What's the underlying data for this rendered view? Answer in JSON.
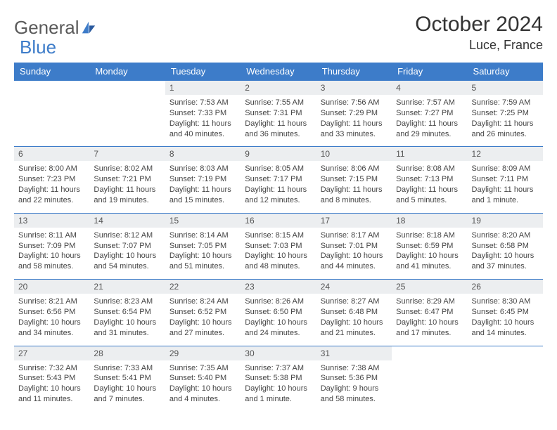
{
  "logo": {
    "part1": "General",
    "part2": "Blue"
  },
  "title": "October 2024",
  "location": "Luce, France",
  "colors": {
    "header_bg": "#3d7cc9",
    "header_text": "#ffffff",
    "daynum_bg": "#eceef0",
    "border": "#3d7cc9",
    "text": "#333333"
  },
  "days": [
    "Sunday",
    "Monday",
    "Tuesday",
    "Wednesday",
    "Thursday",
    "Friday",
    "Saturday"
  ],
  "weeks": [
    {
      "nums": [
        "",
        "",
        "1",
        "2",
        "3",
        "4",
        "5"
      ],
      "cells": [
        null,
        null,
        {
          "sr": "Sunrise: 7:53 AM",
          "ss": "Sunset: 7:33 PM",
          "dl": "Daylight: 11 hours and 40 minutes."
        },
        {
          "sr": "Sunrise: 7:55 AM",
          "ss": "Sunset: 7:31 PM",
          "dl": "Daylight: 11 hours and 36 minutes."
        },
        {
          "sr": "Sunrise: 7:56 AM",
          "ss": "Sunset: 7:29 PM",
          "dl": "Daylight: 11 hours and 33 minutes."
        },
        {
          "sr": "Sunrise: 7:57 AM",
          "ss": "Sunset: 7:27 PM",
          "dl": "Daylight: 11 hours and 29 minutes."
        },
        {
          "sr": "Sunrise: 7:59 AM",
          "ss": "Sunset: 7:25 PM",
          "dl": "Daylight: 11 hours and 26 minutes."
        }
      ]
    },
    {
      "nums": [
        "6",
        "7",
        "8",
        "9",
        "10",
        "11",
        "12"
      ],
      "cells": [
        {
          "sr": "Sunrise: 8:00 AM",
          "ss": "Sunset: 7:23 PM",
          "dl": "Daylight: 11 hours and 22 minutes."
        },
        {
          "sr": "Sunrise: 8:02 AM",
          "ss": "Sunset: 7:21 PM",
          "dl": "Daylight: 11 hours and 19 minutes."
        },
        {
          "sr": "Sunrise: 8:03 AM",
          "ss": "Sunset: 7:19 PM",
          "dl": "Daylight: 11 hours and 15 minutes."
        },
        {
          "sr": "Sunrise: 8:05 AM",
          "ss": "Sunset: 7:17 PM",
          "dl": "Daylight: 11 hours and 12 minutes."
        },
        {
          "sr": "Sunrise: 8:06 AM",
          "ss": "Sunset: 7:15 PM",
          "dl": "Daylight: 11 hours and 8 minutes."
        },
        {
          "sr": "Sunrise: 8:08 AM",
          "ss": "Sunset: 7:13 PM",
          "dl": "Daylight: 11 hours and 5 minutes."
        },
        {
          "sr": "Sunrise: 8:09 AM",
          "ss": "Sunset: 7:11 PM",
          "dl": "Daylight: 11 hours and 1 minute."
        }
      ]
    },
    {
      "nums": [
        "13",
        "14",
        "15",
        "16",
        "17",
        "18",
        "19"
      ],
      "cells": [
        {
          "sr": "Sunrise: 8:11 AM",
          "ss": "Sunset: 7:09 PM",
          "dl": "Daylight: 10 hours and 58 minutes."
        },
        {
          "sr": "Sunrise: 8:12 AM",
          "ss": "Sunset: 7:07 PM",
          "dl": "Daylight: 10 hours and 54 minutes."
        },
        {
          "sr": "Sunrise: 8:14 AM",
          "ss": "Sunset: 7:05 PM",
          "dl": "Daylight: 10 hours and 51 minutes."
        },
        {
          "sr": "Sunrise: 8:15 AM",
          "ss": "Sunset: 7:03 PM",
          "dl": "Daylight: 10 hours and 48 minutes."
        },
        {
          "sr": "Sunrise: 8:17 AM",
          "ss": "Sunset: 7:01 PM",
          "dl": "Daylight: 10 hours and 44 minutes."
        },
        {
          "sr": "Sunrise: 8:18 AM",
          "ss": "Sunset: 6:59 PM",
          "dl": "Daylight: 10 hours and 41 minutes."
        },
        {
          "sr": "Sunrise: 8:20 AM",
          "ss": "Sunset: 6:58 PM",
          "dl": "Daylight: 10 hours and 37 minutes."
        }
      ]
    },
    {
      "nums": [
        "20",
        "21",
        "22",
        "23",
        "24",
        "25",
        "26"
      ],
      "cells": [
        {
          "sr": "Sunrise: 8:21 AM",
          "ss": "Sunset: 6:56 PM",
          "dl": "Daylight: 10 hours and 34 minutes."
        },
        {
          "sr": "Sunrise: 8:23 AM",
          "ss": "Sunset: 6:54 PM",
          "dl": "Daylight: 10 hours and 31 minutes."
        },
        {
          "sr": "Sunrise: 8:24 AM",
          "ss": "Sunset: 6:52 PM",
          "dl": "Daylight: 10 hours and 27 minutes."
        },
        {
          "sr": "Sunrise: 8:26 AM",
          "ss": "Sunset: 6:50 PM",
          "dl": "Daylight: 10 hours and 24 minutes."
        },
        {
          "sr": "Sunrise: 8:27 AM",
          "ss": "Sunset: 6:48 PM",
          "dl": "Daylight: 10 hours and 21 minutes."
        },
        {
          "sr": "Sunrise: 8:29 AM",
          "ss": "Sunset: 6:47 PM",
          "dl": "Daylight: 10 hours and 17 minutes."
        },
        {
          "sr": "Sunrise: 8:30 AM",
          "ss": "Sunset: 6:45 PM",
          "dl": "Daylight: 10 hours and 14 minutes."
        }
      ]
    },
    {
      "nums": [
        "27",
        "28",
        "29",
        "30",
        "31",
        "",
        ""
      ],
      "cells": [
        {
          "sr": "Sunrise: 7:32 AM",
          "ss": "Sunset: 5:43 PM",
          "dl": "Daylight: 10 hours and 11 minutes."
        },
        {
          "sr": "Sunrise: 7:33 AM",
          "ss": "Sunset: 5:41 PM",
          "dl": "Daylight: 10 hours and 7 minutes."
        },
        {
          "sr": "Sunrise: 7:35 AM",
          "ss": "Sunset: 5:40 PM",
          "dl": "Daylight: 10 hours and 4 minutes."
        },
        {
          "sr": "Sunrise: 7:37 AM",
          "ss": "Sunset: 5:38 PM",
          "dl": "Daylight: 10 hours and 1 minute."
        },
        {
          "sr": "Sunrise: 7:38 AM",
          "ss": "Sunset: 5:36 PM",
          "dl": "Daylight: 9 hours and 58 minutes."
        },
        null,
        null
      ]
    }
  ]
}
